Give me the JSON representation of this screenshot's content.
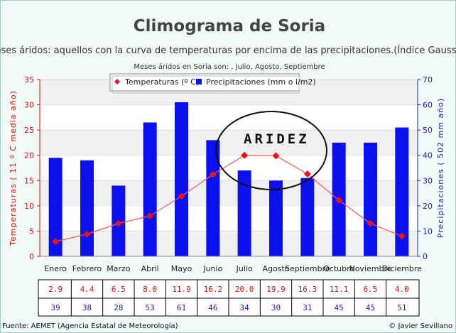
{
  "chart_data": {
    "type": "bar+line",
    "title": "Climograma de Soria",
    "subtitle": "Meses áridos: aquellos con la curva de temperaturas por encima de las precipitaciones.(Índice Gaussen)",
    "subtitle2": "Meses áridos en Soria son: , Julio, Agosto, Septiembre",
    "categories": [
      "Enero",
      "Febrero",
      "Marzo",
      "Abril",
      "Mayo",
      "Junio",
      "Julio",
      "Agosto",
      "Septiembre",
      "Octubre",
      "Noviembre",
      "Diciembre"
    ],
    "series": [
      {
        "name": "Temperaturas (º C)",
        "type": "line",
        "axis": "left",
        "color": "#ee1111",
        "values": [
          2.9,
          4.4,
          6.5,
          8.0,
          11.9,
          16.2,
          20.0,
          19.9,
          16.3,
          11.1,
          6.5,
          4.0
        ],
        "labels": [
          "2.9",
          "4.4",
          "6.5",
          "8.0",
          "11.9",
          "16.2",
          "20.0",
          "19.9",
          "16.3",
          "11.1",
          "6.5",
          "4.0"
        ]
      },
      {
        "name": "Precipitaciones (mm o l/m2)",
        "type": "bar",
        "axis": "right",
        "color": "#0a10ee",
        "values": [
          39,
          38,
          28,
          53,
          61,
          46,
          34,
          30,
          31,
          45,
          45,
          51
        ],
        "labels": [
          "39",
          "38",
          "28",
          "53",
          "61",
          "46",
          "34",
          "30",
          "31",
          "45",
          "45",
          "51"
        ]
      }
    ],
    "y_left": {
      "label": "Temperaturas ( 11 º C media año)",
      "min": 0,
      "max": 35,
      "ticks": [
        "0",
        "5",
        "10",
        "15",
        "20",
        "25",
        "30",
        "35"
      ]
    },
    "y_right": {
      "label": "Precipitaciones ( 502 mm año)",
      "min": 0,
      "max": 70,
      "ticks": [
        "0",
        "10",
        "20",
        "30",
        "40",
        "50",
        "60",
        "70"
      ]
    },
    "grid": "horizontal alternating bands",
    "legend_position": "top-center",
    "annotation": "ARIDEZ",
    "footer_left": "Fuente: AEMET (Agencia Estatal de Meteorología)",
    "footer_right": "© Javier Sevillano"
  }
}
